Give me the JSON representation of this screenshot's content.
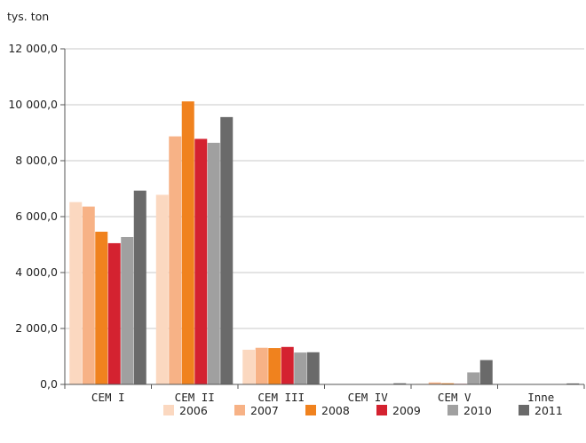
{
  "chart_data": {
    "type": "bar",
    "ylabel": "tys. ton",
    "ylim": [
      0,
      12000
    ],
    "yticks": [
      0,
      2000,
      4000,
      6000,
      8000,
      10000,
      12000
    ],
    "ytick_labels": [
      "0,0",
      "2 000,0",
      "4 000,0",
      "6 000,0",
      "8 000,0",
      "10 000,0",
      "12 000,0"
    ],
    "grid": true,
    "legend_position": "bottom-right",
    "categories": [
      "CEM I",
      "CEM II",
      "CEM III",
      "CEM IV",
      "CEM V",
      "Inne"
    ],
    "series": [
      {
        "name": "2006",
        "color": "#fbd8c0",
        "values": [
          6520,
          6780,
          1240,
          10,
          20,
          15
        ]
      },
      {
        "name": "2007",
        "color": "#f7b286",
        "values": [
          6360,
          8870,
          1310,
          10,
          70,
          15
        ]
      },
      {
        "name": "2008",
        "color": "#f0821e",
        "values": [
          5460,
          10120,
          1300,
          10,
          40,
          15
        ]
      },
      {
        "name": "2009",
        "color": "#d42230",
        "values": [
          5050,
          8780,
          1340,
          10,
          20,
          15
        ]
      },
      {
        "name": "2010",
        "color": "#a0a0a0",
        "values": [
          5270,
          8640,
          1140,
          10,
          430,
          15
        ]
      },
      {
        "name": "2011",
        "color": "#6a6a6a",
        "values": [
          6930,
          9560,
          1150,
          40,
          870,
          35
        ]
      }
    ]
  }
}
